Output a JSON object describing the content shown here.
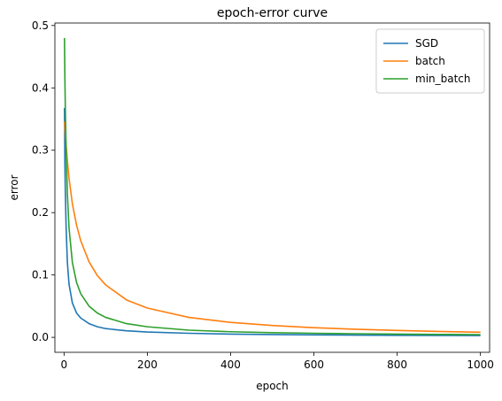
{
  "chart_data": {
    "type": "line",
    "title": "epoch-error curve",
    "xlabel": "epoch",
    "ylabel": "error",
    "xlim": [
      -22,
      1022
    ],
    "ylim": [
      -0.024,
      0.504
    ],
    "xticks": [
      0,
      200,
      400,
      600,
      800,
      1000
    ],
    "yticks": [
      0.0,
      0.1,
      0.2,
      0.3,
      0.4,
      0.5
    ],
    "grid": false,
    "legend_position": "top-right",
    "series": [
      {
        "name": "SGD",
        "color": "#1f77b4",
        "x": [
          1,
          2,
          3,
          5,
          8,
          12,
          20,
          30,
          40,
          60,
          80,
          100,
          150,
          200,
          300,
          400,
          500,
          600,
          700,
          800,
          900,
          1000
        ],
        "y": [
          0.368,
          0.28,
          0.235,
          0.175,
          0.12,
          0.085,
          0.055,
          0.039,
          0.031,
          0.022,
          0.017,
          0.014,
          0.0105,
          0.0085,
          0.0065,
          0.0052,
          0.0045,
          0.004,
          0.0036,
          0.0033,
          0.0031,
          0.0029
        ]
      },
      {
        "name": "batch",
        "color": "#ff7f0e",
        "x": [
          1,
          2,
          3,
          5,
          8,
          12,
          20,
          30,
          40,
          60,
          80,
          100,
          150,
          200,
          300,
          400,
          500,
          600,
          700,
          800,
          900,
          1000
        ],
        "y": [
          0.346,
          0.335,
          0.325,
          0.308,
          0.283,
          0.255,
          0.214,
          0.18,
          0.155,
          0.121,
          0.099,
          0.084,
          0.06,
          0.047,
          0.032,
          0.024,
          0.019,
          0.0155,
          0.013,
          0.011,
          0.0095,
          0.0082
        ]
      },
      {
        "name": "min_batch",
        "color": "#2ca02c",
        "x": [
          1,
          2,
          3,
          5,
          8,
          12,
          20,
          30,
          40,
          60,
          80,
          100,
          150,
          200,
          300,
          400,
          500,
          600,
          700,
          800,
          900,
          1000
        ],
        "y": [
          0.48,
          0.415,
          0.37,
          0.3,
          0.23,
          0.175,
          0.12,
          0.088,
          0.07,
          0.05,
          0.039,
          0.032,
          0.022,
          0.017,
          0.0115,
          0.009,
          0.0075,
          0.0065,
          0.0058,
          0.0052,
          0.0047,
          0.0043
        ]
      }
    ]
  }
}
